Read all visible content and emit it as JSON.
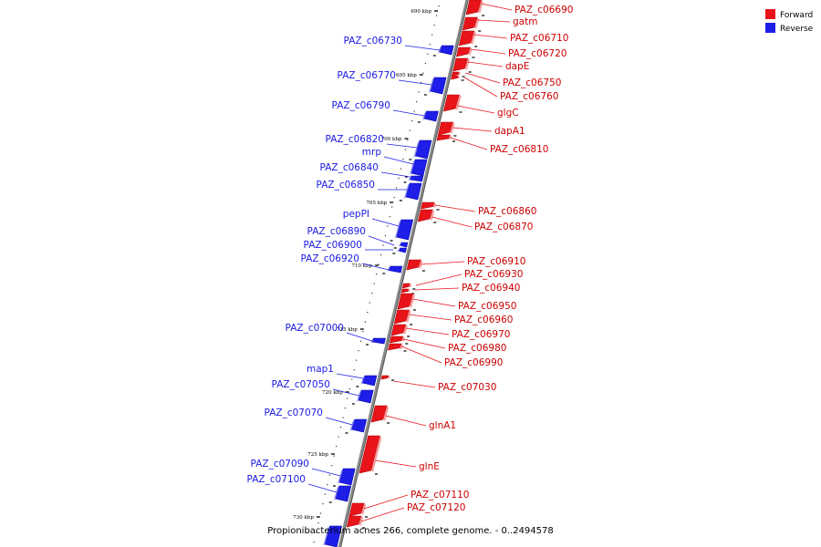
{
  "legend": {
    "forward_label": "Forward",
    "reverse_label": "Reverse",
    "forward_color": "#e8141a",
    "reverse_color": "#1e1ee8"
  },
  "caption": "Propionibacterium acnes 266, complete genome. - 0..2494578",
  "ticks": [
    "690 kbp",
    "695 kbp",
    "700 kbp",
    "705 kbp",
    "710 kbp",
    "715 kbp",
    "720 kbp",
    "725 kbp",
    "730 kbp"
  ],
  "forward_genes": [
    "PAZ_c06690",
    "gatm",
    "PAZ_c06710",
    "PAZ_c06720",
    "dapE",
    "PAZ_c06750",
    "PAZ_c06760",
    "glgC",
    "dapA1",
    "PAZ_c06810",
    "PAZ_c06860",
    "PAZ_c06870",
    "PAZ_c06910",
    "PAZ_c06930",
    "PAZ_c06940",
    "PAZ_c06950",
    "PAZ_c06960",
    "PAZ_c06970",
    "PAZ_c06980",
    "PAZ_c06990",
    "PAZ_c07030",
    "glnA1",
    "glnE",
    "PAZ_c07110",
    "PAZ_c07120"
  ],
  "reverse_genes": [
    "PAZ_c06730",
    "PAZ_c06770",
    "PAZ_c06790",
    "PAZ_c06820",
    "mrp",
    "PAZ_c06840",
    "PAZ_c06850",
    "pepPI",
    "PAZ_c06890",
    "PAZ_c06900",
    "PAZ_c06920",
    "PAZ_c07000",
    "map1",
    "PAZ_c07050",
    "PAZ_c07070",
    "PAZ_c07090",
    "PAZ_c07100"
  ]
}
